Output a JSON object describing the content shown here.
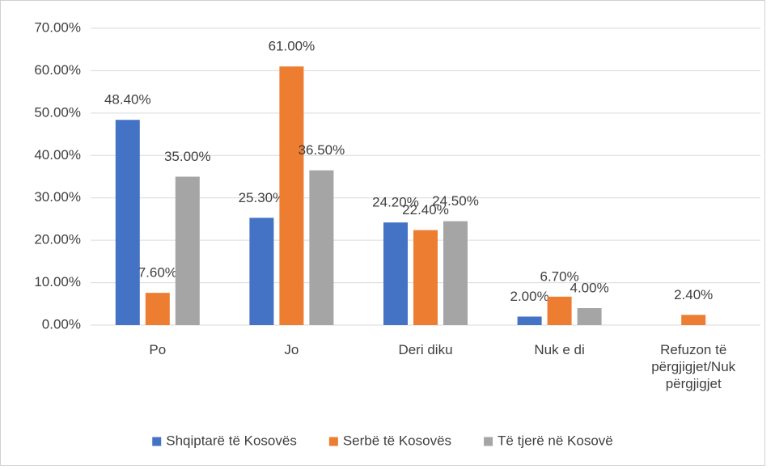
{
  "chart_data": {
    "type": "bar",
    "categories": [
      "Po",
      "Jo",
      "Deri diku",
      "Nuk e di",
      "Refuzon të përgjigjet/Nuk përgjigjet"
    ],
    "series": [
      {
        "name": "Shqiptarë të Kosovës",
        "color": "#4472c4",
        "values": [
          48.4,
          25.3,
          24.2,
          2.0,
          null
        ],
        "value_labels": [
          "48.40%",
          "25.30%",
          "24.20%",
          "2.00%",
          null
        ]
      },
      {
        "name": "Serbë të Kosovës",
        "color": "#ed7d31",
        "values": [
          7.6,
          61.0,
          22.4,
          6.7,
          2.4
        ],
        "value_labels": [
          "7.60%",
          "61.00%",
          "22.40%",
          "6.70%",
          "2.40%"
        ]
      },
      {
        "name": "Të tjerë në Kosovë",
        "color": "#a5a5a5",
        "values": [
          35.0,
          36.5,
          24.5,
          4.0,
          null
        ],
        "value_labels": [
          "35.00%",
          "36.50%",
          "24.50%",
          "4.00%",
          null
        ]
      }
    ],
    "ylim": [
      0,
      70
    ],
    "yticks": [
      {
        "value": 0,
        "label": "0.00%"
      },
      {
        "value": 10,
        "label": "10.00%"
      },
      {
        "value": 20,
        "label": "20.00%"
      },
      {
        "value": 30,
        "label": "30.00%"
      },
      {
        "value": 40,
        "label": "40.00%"
      },
      {
        "value": 50,
        "label": "50.00%"
      },
      {
        "value": 60,
        "label": "60.00%"
      },
      {
        "value": 70,
        "label": "70.00%"
      }
    ],
    "grid": true,
    "legend": "bottom"
  }
}
